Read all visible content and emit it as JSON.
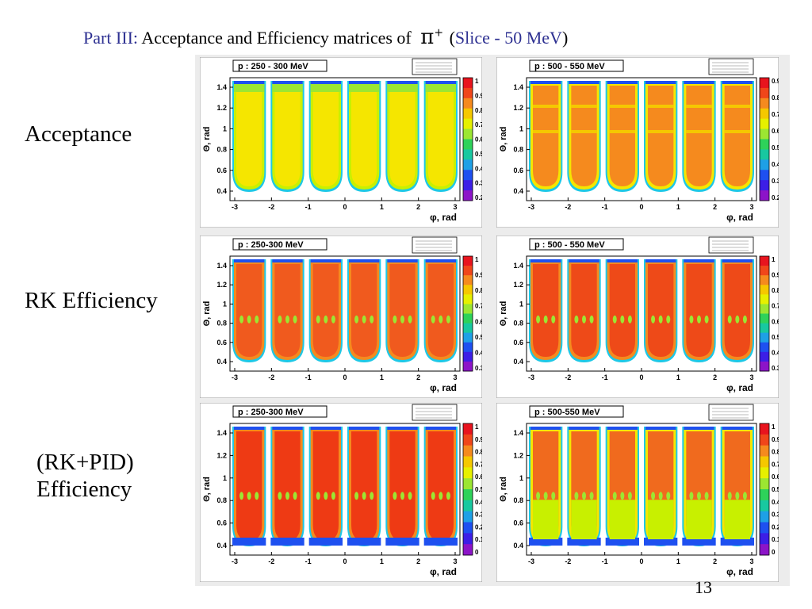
{
  "title": {
    "part": "Part III:",
    "text": "Acceptance and Efficiency matrices of",
    "particle": "π",
    "charge": "+",
    "paren_open": "(",
    "slice": "Slice - 50 MeV",
    "paren_close": ")"
  },
  "rows": [
    {
      "label_lines": [
        "Acceptance"
      ]
    },
    {
      "label_lines": [
        "RK Efficiency"
      ]
    },
    {
      "label_lines": [
        "(RK+PID)",
        "Efficiency"
      ]
    }
  ],
  "page_number": "13",
  "axis": {
    "x_label": "φ, rad",
    "y_label": "Θ, rad",
    "x_ticks": [
      "-3",
      "-2",
      "-1",
      "0",
      "1",
      "2",
      "3"
    ]
  },
  "panels": [
    {
      "id": "acc-250",
      "momentum": "p : 250 - 300 MeV",
      "base": "#f5e600",
      "edge": "#c8f000",
      "pattern": "yellow",
      "y_ticks": [
        "1.4",
        "1.2",
        "1",
        "0.8",
        "0.6",
        "0.4"
      ],
      "z_ticks": [
        "1",
        "0.9",
        "0.8",
        "0.7",
        "0.6",
        "0.5",
        "0.4",
        "0.3",
        "0.2"
      ]
    },
    {
      "id": "acc-500",
      "momentum": "p : 500 - 550 MeV",
      "base": "#f58a1e",
      "edge": "#f5e600",
      "pattern": "orange",
      "y_ticks": [
        "1.4",
        "1.2",
        "1",
        "0.8",
        "0.6",
        "0.4"
      ],
      "z_ticks": [
        "0.9",
        "0.8",
        "0.7",
        "0.6",
        "0.5",
        "0.4",
        "0.3",
        "0.2"
      ]
    },
    {
      "id": "rk-250",
      "momentum": "p : 250-300 MeV",
      "base": "#f05a1e",
      "edge": "#f58a1e",
      "pattern": "eff",
      "y_ticks": [
        "1.4",
        "1.2",
        "1",
        "0.8",
        "0.6",
        "0.4"
      ],
      "z_ticks": [
        "1",
        "0.9",
        "0.8",
        "0.7",
        "0.6",
        "0.5",
        "0.4",
        "0.3"
      ]
    },
    {
      "id": "rk-500",
      "momentum": "p : 500 - 550 MeV",
      "base": "#ee4a18",
      "edge": "#f58a1e",
      "pattern": "eff",
      "y_ticks": [
        "1.4",
        "1.2",
        "1",
        "0.8",
        "0.6",
        "0.4"
      ],
      "z_ticks": [
        "1",
        "0.9",
        "0.8",
        "0.7",
        "0.6",
        "0.5",
        "0.4",
        "0.3"
      ]
    },
    {
      "id": "pid-250",
      "momentum": "p : 250-300 MeV",
      "base": "#ee3a14",
      "edge": "#f58a1e",
      "pattern": "pid",
      "y_ticks": [
        "1.4",
        "1.2",
        "1",
        "0.8",
        "0.6",
        "0.4"
      ],
      "z_ticks": [
        "1",
        "0.9",
        "0.8",
        "0.7",
        "0.6",
        "0.5",
        "0.4",
        "0.3",
        "0.2",
        "0.1",
        "0"
      ]
    },
    {
      "id": "pid-500",
      "momentum": "p : 500-550 MeV",
      "base": "#f06a1e",
      "edge": "#f5e600",
      "pattern": "pid-high",
      "y_ticks": [
        "1.4",
        "1.2",
        "1",
        "0.8",
        "0.6",
        "0.4"
      ],
      "z_ticks": [
        "1",
        "0.9",
        "0.8",
        "0.7",
        "0.6",
        "0.5",
        "0.4",
        "0.3",
        "0.2",
        "0.1",
        "0"
      ]
    }
  ]
}
